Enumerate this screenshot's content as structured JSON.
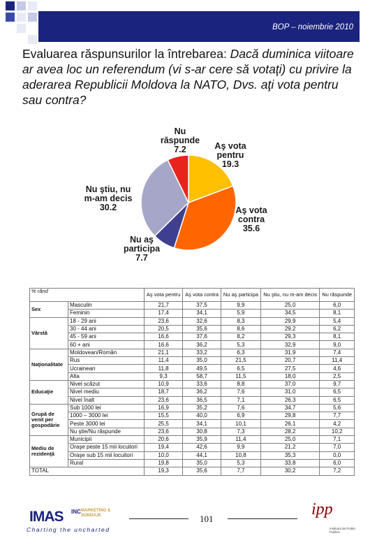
{
  "header": {
    "title": "BOP – noiembrie 2010",
    "bar_color": "#1a237e"
  },
  "question": {
    "lead": "Evaluarea răspunsurilor la întrebarea: ",
    "body": "Dacă duminica viitoare ar avea loc un referendum (vi s-ar cere să votaţi) cu privire la aderarea Republicii Moldova la NATO, Dvs. aţi vota pentru sau contra?"
  },
  "chart_data": {
    "type": "pie",
    "slices": [
      {
        "label_lines": [
          "Aş vota",
          "pentru"
        ],
        "value": 19.3,
        "value_text": "19.3",
        "color": "#ffc000"
      },
      {
        "label_lines": [
          "Aş vota",
          "contra"
        ],
        "value": 35.6,
        "value_text": "35.6",
        "color": "#ff6600"
      },
      {
        "label_lines": [
          "Nu aş",
          "participa"
        ],
        "value": 7.7,
        "value_text": "7.7",
        "color": "#3f3f8f"
      },
      {
        "label_lines": [
          "Nu ştiu, nu",
          "m-am decis"
        ],
        "value": 30.2,
        "value_text": "30.2",
        "color": "#a6a6c8"
      },
      {
        "label_lines": [
          "Nu",
          "răspunde"
        ],
        "value": 7.2,
        "value_text": "7.2",
        "color": "#e8231e"
      }
    ]
  },
  "table": {
    "headers": [
      "% rând",
      "Aş vota pentru",
      "Aş vota contra",
      "Nu aş participa",
      "Nu ştiu, nu m-am decis",
      "Nu răspunde"
    ],
    "groups": [
      {
        "name": "Sex",
        "rows": [
          {
            "label": "Masculin",
            "values": [
              "21,7",
              "37,5",
              "9,9",
              "25,0",
              "6,0"
            ]
          },
          {
            "label": "Feminin",
            "values": [
              "17,4",
              "34,1",
              "5,9",
              "34,5",
              "8,1"
            ]
          }
        ]
      },
      {
        "name": "Vârstă",
        "rows": [
          {
            "label": "18 - 29 ani",
            "values": [
              "23,6",
              "32,6",
              "8,3",
              "29,9",
              "5,4"
            ]
          },
          {
            "label": "30 - 44 ani",
            "values": [
              "20,5",
              "35,6",
              "8,6",
              "29,2",
              "6,2"
            ]
          },
          {
            "label": "45 - 59 ani",
            "values": [
              "16,6",
              "37,6",
              "8,2",
              "29,3",
              "8,1"
            ]
          },
          {
            "label": "60 + ani",
            "values": [
              "16,6",
              "36,2",
              "5,3",
              "32,9",
              "9,0"
            ]
          }
        ]
      },
      {
        "name": "Naţionalitate",
        "rows": [
          {
            "label": "Moldovean/Român",
            "values": [
              "21,1",
              "33,2",
              "6,3",
              "31,9",
              "7,4"
            ]
          },
          {
            "label": "Rus",
            "values": [
              "11,4",
              "35,0",
              "21,5",
              "20,7",
              "11,4"
            ]
          },
          {
            "label": "Ucrainean",
            "values": [
              "11,8",
              "49,5",
              "6,5",
              "27,5",
              "4,6"
            ]
          },
          {
            "label": "Alta",
            "values": [
              "9,3",
              "58,7",
              "11,5",
              "18,0",
              "2,5"
            ]
          }
        ]
      },
      {
        "name": "Educaţie",
        "rows": [
          {
            "label": "Nivel scăzut",
            "values": [
              "10,9",
              "33,6",
              "8,8",
              "37,0",
              "9,7"
            ]
          },
          {
            "label": "Nivel mediu",
            "values": [
              "18,7",
              "36,2",
              "7,6",
              "31,0",
              "6,5"
            ]
          },
          {
            "label": "Nivel înalt",
            "values": [
              "23,6",
              "36,5",
              "7,1",
              "26,3",
              "6,5"
            ]
          }
        ]
      },
      {
        "name": "Grupă de venit per gospodărie",
        "rows": [
          {
            "label": "Sub 1000 lei",
            "values": [
              "16,9",
              "35,2",
              "7,6",
              "34,7",
              "5,6"
            ]
          },
          {
            "label": "1000 – 3000 lei",
            "values": [
              "15,5",
              "40,0",
              "6,9",
              "29,8",
              "7,7"
            ]
          },
          {
            "label": "Peste 3000 lei",
            "values": [
              "25,5",
              "34,1",
              "10,1",
              "26,1",
              "4,2"
            ]
          },
          {
            "label": "Nu ştie/Nu răspunde",
            "values": [
              "23,6",
              "30,8",
              "7,3",
              "28,2",
              "10,2"
            ]
          }
        ]
      },
      {
        "name": "Mediu de rezidenţă",
        "rows": [
          {
            "label": "Municipii",
            "values": [
              "20,6",
              "35,9",
              "11,4",
              "25,0",
              "7,1"
            ]
          },
          {
            "label": "Oraşe peste 15 mii locuitori",
            "values": [
              "19,4",
              "42,6",
              "9,9",
              "21,2",
              "7,0"
            ]
          },
          {
            "label": "Oraşe sub 15 mii locuitori",
            "values": [
              "10,0",
              "44,1",
              "10,8",
              "35,3",
              "0,0"
            ]
          },
          {
            "label": "Rural",
            "values": [
              "19,8",
              "35,0",
              "5,3",
              "33,8",
              "6,0"
            ]
          }
        ]
      }
    ],
    "total": {
      "label": "TOTAL",
      "values": [
        "19,3",
        "35,6",
        "7,7",
        "30,2",
        "7,2"
      ]
    }
  },
  "footer": {
    "page_number": "101",
    "logo_main": "IMAS",
    "logo_inc": "INC",
    "logo_marketing": "MARKETING & SONDAJE",
    "logo_tagline": "Charting the uncharted",
    "ipp_mark": "ipp",
    "ipp_sub": "Institutul de Politici Publice"
  }
}
